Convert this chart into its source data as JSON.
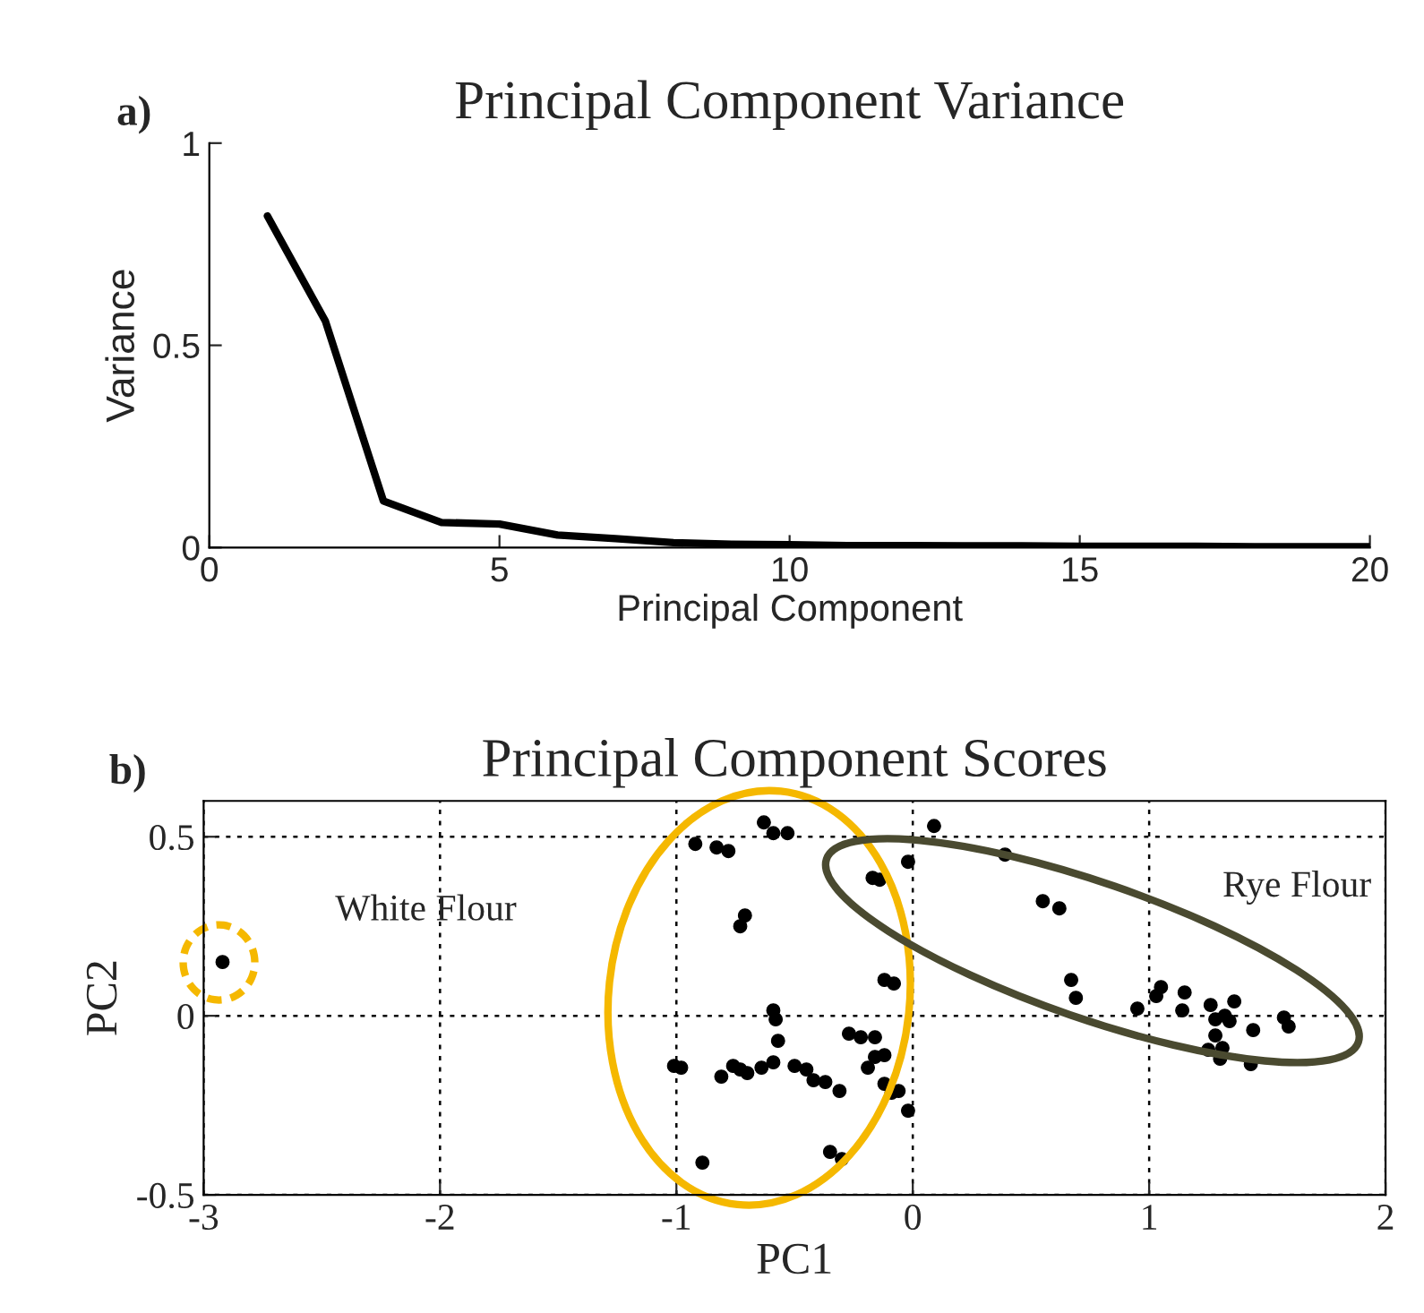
{
  "chart_data": [
    {
      "type": "line",
      "title": "Principal Component Variance",
      "xlabel": "Principal Component",
      "ylabel": "Variance",
      "x": [
        1,
        2,
        3,
        4,
        5,
        6,
        7,
        8,
        9,
        10,
        11,
        12,
        13,
        14,
        15,
        16,
        17,
        18,
        19,
        20
      ],
      "series": [
        {
          "color": "#000000",
          "values": [
            0.82,
            0.56,
            0.115,
            0.062,
            0.058,
            0.031,
            0.022,
            0.012,
            0.008,
            0.007,
            0.005,
            0.005,
            0.004,
            0.004,
            0.003,
            0.003,
            0.003,
            0.002,
            0.002,
            0.002
          ]
        }
      ],
      "xlim": [
        0,
        20
      ],
      "xticks": [
        0,
        5,
        10,
        15,
        20
      ],
      "ylim": [
        0,
        1
      ],
      "yticks": [
        0,
        0.5,
        1
      ],
      "grid": false,
      "marker": "none",
      "line_style": "solid",
      "annotations": [
        "a)"
      ]
    },
    {
      "type": "scatter",
      "title": "Principal Component Scores",
      "xlabel": "PC1",
      "ylabel": "PC2",
      "series": [
        {
          "color": "#000000",
          "x": [
            -2.92,
            -0.92,
            -0.83,
            -0.78,
            -0.63,
            -0.59,
            -0.53,
            -0.71,
            -0.73,
            -0.17,
            -0.14,
            -0.02,
            0.09,
            0.39,
            0.55,
            0.62,
            0.67,
            0.69,
            -0.12,
            -0.08,
            -0.59,
            -0.58,
            -0.57,
            -1.01,
            -0.98,
            -0.81,
            -0.76,
            -0.73,
            -0.7,
            -0.64,
            -0.59,
            -0.5,
            -0.45,
            -0.42,
            -0.37,
            -0.31,
            -0.27,
            -0.22,
            -0.16,
            -0.19,
            -0.16,
            -0.12,
            -0.12,
            -0.09,
            -0.06,
            -0.02,
            -0.89,
            -0.35,
            -0.3,
            0.95,
            1.03,
            1.05,
            1.15,
            1.14,
            1.26,
            1.32,
            1.36,
            1.28,
            1.28,
            1.25,
            1.31,
            1.3,
            1.44,
            1.43,
            1.57,
            1.59,
            1.34
          ],
          "values": [
            0.15,
            0.48,
            0.47,
            0.46,
            0.54,
            0.51,
            0.51,
            0.28,
            0.25,
            0.385,
            0.38,
            0.43,
            0.53,
            0.45,
            0.32,
            0.3,
            0.1,
            0.05,
            0.1,
            0.09,
            0.015,
            -0.01,
            -0.07,
            -0.14,
            -0.145,
            -0.17,
            -0.14,
            -0.15,
            -0.16,
            -0.145,
            -0.13,
            -0.14,
            -0.15,
            -0.18,
            -0.185,
            -0.21,
            -0.05,
            -0.06,
            -0.06,
            -0.145,
            -0.115,
            -0.11,
            -0.19,
            -0.215,
            -0.21,
            -0.265,
            -0.41,
            -0.38,
            -0.4,
            0.02,
            0.055,
            0.08,
            0.065,
            0.015,
            0.03,
            0.0,
            0.04,
            -0.01,
            -0.055,
            -0.095,
            -0.09,
            -0.12,
            -0.04,
            -0.135,
            -0.005,
            -0.03,
            -0.015
          ]
        }
      ],
      "xlim": [
        -3,
        2
      ],
      "xticks": [
        -3,
        -2,
        -1,
        0,
        1,
        2
      ],
      "ylim": [
        -0.5,
        0.6
      ],
      "yticks": [
        -0.5,
        0,
        0.5
      ],
      "grid": true,
      "marker": "circle",
      "annotations": [
        "b)",
        "White Flour",
        "Rye Flour"
      ]
    }
  ]
}
